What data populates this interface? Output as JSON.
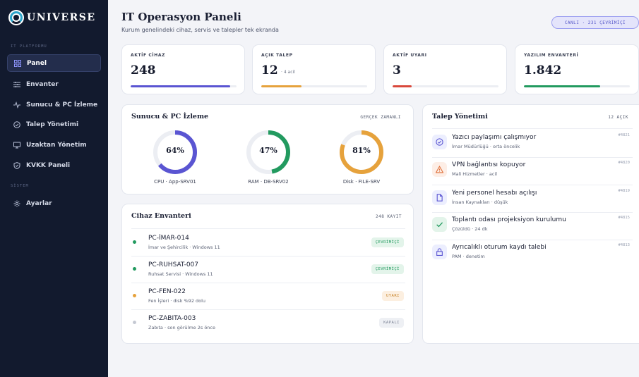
{
  "brand": {
    "name": "UNIVERSE"
  },
  "sidebar": {
    "section_platform": "IT PLATFORMU",
    "section_system": "SİSTEM",
    "items": [
      {
        "label": "Panel",
        "icon": "grid-icon",
        "active": true
      },
      {
        "label": "Envanter",
        "icon": "list-icon",
        "active": false
      },
      {
        "label": "Sunucu & PC İzleme",
        "icon": "pulse-icon",
        "active": false
      },
      {
        "label": "Talep Yönetimi",
        "icon": "check-circle-icon",
        "active": false
      },
      {
        "label": "Uzaktan Yönetim",
        "icon": "monitor-icon",
        "active": false
      },
      {
        "label": "KVKK Paneli",
        "icon": "shield-icon",
        "active": false
      }
    ],
    "system_items": [
      {
        "label": "Ayarlar",
        "icon": "gear-icon"
      }
    ]
  },
  "header": {
    "title": "IT Operasyon Paneli",
    "subtitle": "Kurum genelindeki cihaz, servis ve talepler tek ekranda",
    "live_badge": "CANLI · 231 ÇEVRİMİÇİ"
  },
  "kpis": [
    {
      "label": "AKTİF CİHAZ",
      "value": "248",
      "note": "",
      "progress": 0.94,
      "color": "#5a55d2"
    },
    {
      "label": "AÇIK TALEP",
      "value": "12",
      "note": "· 4 acil",
      "progress": 0.38,
      "color": "#e6a23c"
    },
    {
      "label": "AKTİF UYARI",
      "value": "3",
      "note": "",
      "progress": 0.18,
      "color": "#d9483b"
    },
    {
      "label": "YAZILIM ENVANTERİ",
      "value": "1.842",
      "note": "",
      "progress": 0.72,
      "color": "#229a5f"
    }
  ],
  "monitor": {
    "title": "Sunucu & PC İzleme",
    "tag": "GERÇEK ZAMANLI",
    "gauges": [
      {
        "value_label": "64%",
        "value": 64,
        "label": "CPU · App-SRV01",
        "color": "#5a55d2"
      },
      {
        "value_label": "47%",
        "value": 47,
        "label": "RAM · DB-SRV02",
        "color": "#229a5f"
      },
      {
        "value_label": "81%",
        "value": 81,
        "label": "Disk · FILE-SRV",
        "color": "#e6a23c"
      }
    ]
  },
  "inventory": {
    "title": "Cihaz Envanteri",
    "tag": "248 KAYIT",
    "devices": [
      {
        "name": "PC-İMAR-014",
        "sub": "İmar ve Şehircilik · Windows 11",
        "status": "ÇEVRİMİÇİ",
        "dot": "#229a5f",
        "badge_bg": "#e3f4ea",
        "badge_fg": "#229a5f"
      },
      {
        "name": "PC-RUHSAT-007",
        "sub": "Ruhsat Servisi · Windows 11",
        "status": "ÇEVRİMİÇİ",
        "dot": "#229a5f",
        "badge_bg": "#e3f4ea",
        "badge_fg": "#229a5f"
      },
      {
        "name": "PC-FEN-022",
        "sub": "Fen İşleri · disk %92 dolu",
        "status": "UYARI",
        "dot": "#e6a23c",
        "badge_bg": "#fcefe0",
        "badge_fg": "#c7852c"
      },
      {
        "name": "PC-ZABITA-003",
        "sub": "Zabıta · son görülme 2s önce",
        "status": "KAPALI",
        "dot": "#c5c9d3",
        "badge_bg": "#eef0f4",
        "badge_fg": "#7d8496"
      }
    ]
  },
  "tickets": {
    "title": "Talep Yönetimi",
    "tag": "12 AÇIK",
    "items": [
      {
        "title": "Yazıcı paylaşımı çalışmıyor",
        "sub": "İmar Müdürlüğü · orta öncelik",
        "id": "#4821",
        "icon": "check-circle-icon",
        "bg": "#eceefe",
        "fg": "#5a55d2"
      },
      {
        "title": "VPN bağlantısı kopuyor",
        "sub": "Mali Hizmetler · acil",
        "id": "#4820",
        "icon": "warning-icon",
        "bg": "#fdeee6",
        "fg": "#e0703a"
      },
      {
        "title": "Yeni personel hesabı açılışı",
        "sub": "İnsan Kaynakları · düşük",
        "id": "#4819",
        "icon": "document-icon",
        "bg": "#eceefe",
        "fg": "#5a55d2"
      },
      {
        "title": "Toplantı odası projeksiyon kurulumu",
        "sub": "Çözüldü · 24 dk",
        "id": "#4815",
        "icon": "checkmark-icon",
        "bg": "#e3f4ea",
        "fg": "#229a5f"
      },
      {
        "title": "Ayrıcalıklı oturum kaydı talebi",
        "sub": "PAM · denetim",
        "id": "#4813",
        "icon": "lock-icon",
        "bg": "#eceefe",
        "fg": "#5a55d2"
      }
    ]
  }
}
